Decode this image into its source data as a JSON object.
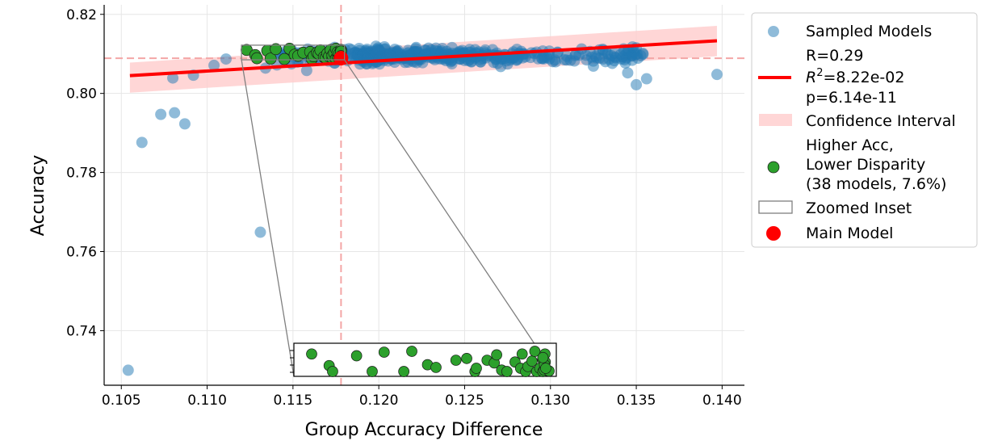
{
  "chart_data": {
    "type": "scatter",
    "xlabel": "Group Accuracy Difference",
    "ylabel": "Accuracy",
    "xlim": [
      0.104,
      0.1413
    ],
    "ylim": [
      0.7262,
      0.8224
    ],
    "xticks": [
      "0.105",
      "0.110",
      "0.115",
      "0.120",
      "0.125",
      "0.130",
      "0.135",
      "0.140"
    ],
    "yticks": [
      "0.74",
      "0.76",
      "0.78",
      "0.80",
      "0.82"
    ],
    "grid": true,
    "legend_position": "outside-right",
    "reference_lines": {
      "x": 0.1178,
      "y": 0.8089
    },
    "regression": {
      "x": [
        0.1055,
        0.1397
      ],
      "y": [
        0.8045,
        0.8133
      ],
      "ci_upper": [
        0.8078,
        0.8171
      ],
      "ci_lower": [
        0.8002,
        0.8094
      ],
      "R": "R=0.29",
      "R2": "8.22e-02",
      "p": "p=6.14e-11"
    },
    "main_model": {
      "x": 0.1178,
      "y": 0.8089
    },
    "sampled_models_outliers": [
      {
        "x": 0.1054,
        "y": 0.73
      },
      {
        "x": 0.1062,
        "y": 0.7876
      },
      {
        "x": 0.1073,
        "y": 0.7947
      },
      {
        "x": 0.1081,
        "y": 0.7951
      },
      {
        "x": 0.1087,
        "y": 0.7923
      },
      {
        "x": 0.108,
        "y": 0.8039
      },
      {
        "x": 0.1092,
        "y": 0.8046
      },
      {
        "x": 0.1104,
        "y": 0.8071
      },
      {
        "x": 0.1111,
        "y": 0.8087
      },
      {
        "x": 0.1131,
        "y": 0.7649
      },
      {
        "x": 0.1134,
        "y": 0.8064
      },
      {
        "x": 0.1158,
        "y": 0.8058
      },
      {
        "x": 0.1271,
        "y": 0.8068
      },
      {
        "x": 0.1303,
        "y": 0.808
      },
      {
        "x": 0.1325,
        "y": 0.8069
      },
      {
        "x": 0.1336,
        "y": 0.8076
      },
      {
        "x": 0.1345,
        "y": 0.8052
      },
      {
        "x": 0.135,
        "y": 0.8022
      },
      {
        "x": 0.1356,
        "y": 0.8037
      },
      {
        "x": 0.1397,
        "y": 0.8048
      }
    ],
    "sampled_models_band": {
      "x_range": [
        0.114,
        0.1355
      ],
      "y_center": 0.8095,
      "y_spread": 0.0022,
      "count": 460
    },
    "better_models": {
      "count": 38,
      "x_range": [
        0.112,
        0.1178
      ],
      "y_range": [
        0.8089,
        0.8118
      ]
    },
    "inset": {
      "xlim": [
        0.112,
        0.118
      ],
      "ylim": [
        0.8085,
        0.8122
      ],
      "points": [
        [
          0.1123,
          0.811
        ],
        [
          0.1128,
          0.8097
        ],
        [
          0.1129,
          0.8089
        ],
        [
          0.1135,
          0.8108
        ],
        [
          0.1137,
          0.8088
        ],
        [
          0.114,
          0.8112
        ],
        [
          0.1145,
          0.8087
        ],
        [
          0.1148,
          0.8113
        ],
        [
          0.1151,
          0.8098
        ],
        [
          0.1153,
          0.8095
        ],
        [
          0.1156,
          0.8103
        ],
        [
          0.116,
          0.8105
        ],
        [
          0.1161,
          0.8087
        ],
        [
          0.1162,
          0.8094
        ],
        [
          0.1164,
          0.8103
        ],
        [
          0.1165,
          0.81
        ],
        [
          0.1166,
          0.8109
        ],
        [
          0.1168,
          0.8092
        ],
        [
          0.1169,
          0.809
        ],
        [
          0.117,
          0.8101
        ],
        [
          0.1171,
          0.8094
        ],
        [
          0.1172,
          0.811
        ],
        [
          0.1173,
          0.8089
        ],
        [
          0.1173,
          0.8096
        ],
        [
          0.1174,
          0.8102
        ],
        [
          0.1175,
          0.8113
        ],
        [
          0.1175,
          0.8088
        ],
        [
          0.1176,
          0.8094
        ],
        [
          0.1176,
          0.8104
        ],
        [
          0.1177,
          0.8096
        ],
        [
          0.1177,
          0.8089
        ],
        [
          0.1177,
          0.8101
        ],
        [
          0.1178,
          0.8092
        ],
        [
          0.1178,
          0.811
        ],
        [
          0.1178,
          0.8098
        ],
        [
          0.1178,
          0.8091
        ],
        [
          0.1178,
          0.8106
        ],
        [
          0.1178,
          0.8094
        ]
      ]
    },
    "legend": [
      {
        "key": "sampled",
        "label": "Sampled Models"
      },
      {
        "key": "regression",
        "label_lines": [
          "R=0.29",
          "=8.22e-02",
          "p=6.14e-11"
        ],
        "r2_symbol": "R",
        "r2_sup": "2"
      },
      {
        "key": "ci",
        "label": "Confidence Interval"
      },
      {
        "key": "better",
        "label_lines": [
          "Higher Acc,",
          "Lower Disparity",
          "(38 models, 7.6%)"
        ]
      },
      {
        "key": "inset",
        "label": "Zoomed Inset"
      },
      {
        "key": "main",
        "label": "Main Model"
      }
    ],
    "colors": {
      "sampled": "#1f77b4",
      "sampled_light": "#8cb7da",
      "regression": "#ff0000",
      "ci": "#ffcccc",
      "better": "#2ca02c",
      "main": "#ff0000",
      "refline": "#f4a6a6"
    }
  }
}
